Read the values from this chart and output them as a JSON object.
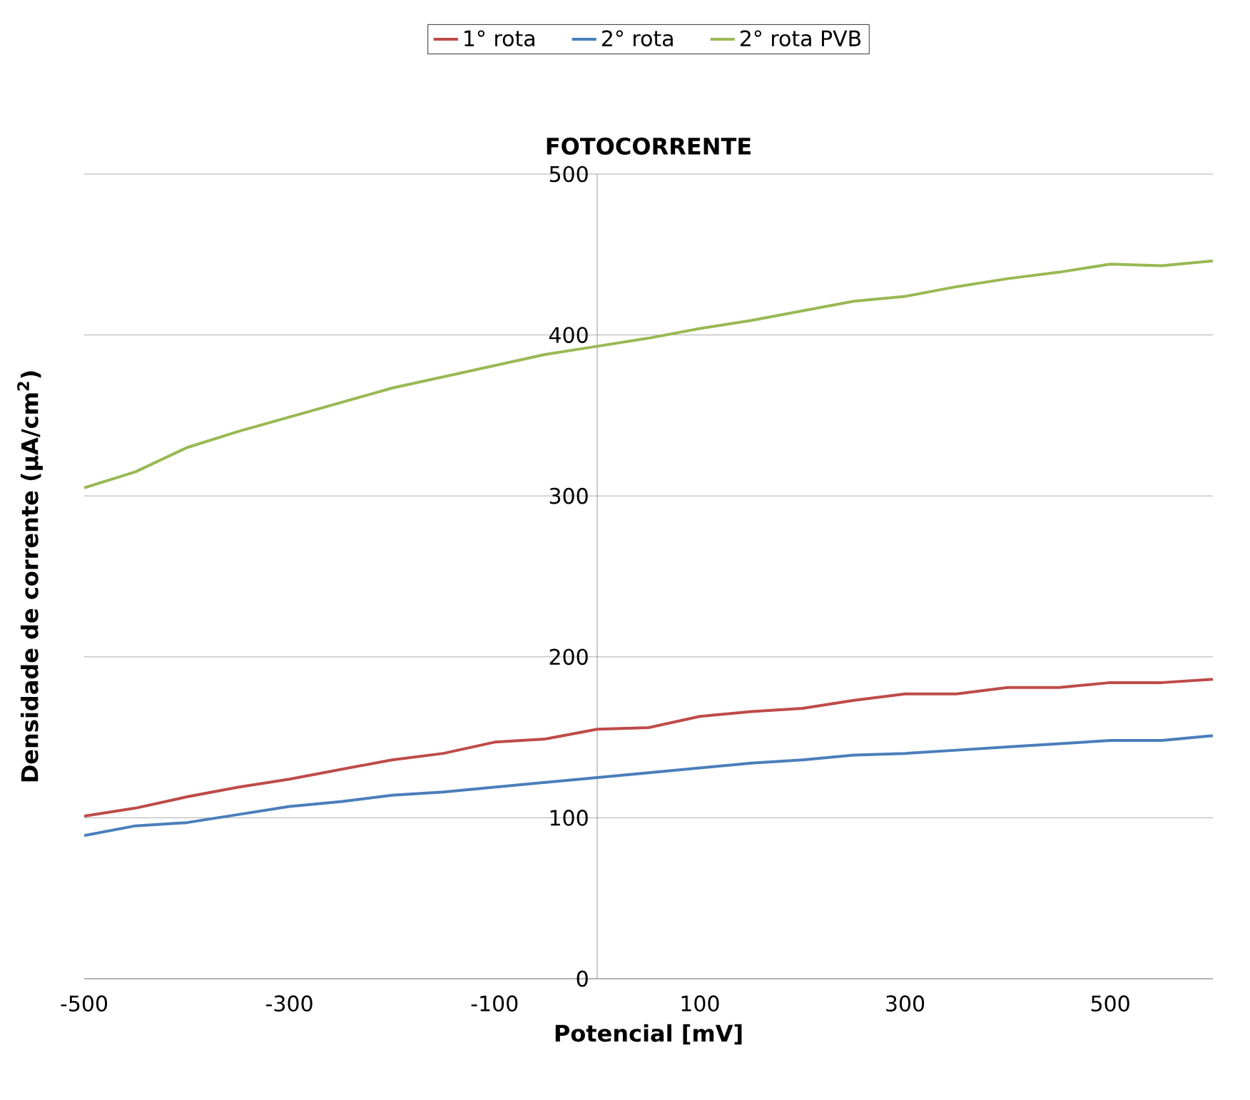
{
  "chart_data": {
    "type": "line",
    "title": "FOTOCORRENTE",
    "xlabel": "Potencial [mV]",
    "ylabel": "Densidade de corrente (µA/cm$^{2}$)",
    "x": [
      -500,
      -450,
      -400,
      -350,
      -300,
      -250,
      -200,
      -150,
      -100,
      -50,
      0,
      50,
      100,
      150,
      200,
      250,
      300,
      350,
      400,
      450,
      500,
      550,
      600
    ],
    "series": [
      {
        "name": "1° rota",
        "color": "#be4b48",
        "values": [
          101,
          106,
          113,
          119,
          124,
          130,
          136,
          140,
          147,
          149,
          155,
          156,
          163,
          166,
          168,
          173,
          177,
          177,
          181,
          181,
          184,
          184,
          186
        ]
      },
      {
        "name": "2° rota",
        "color": "#4a7ebb",
        "values": [
          89,
          95,
          97,
          102,
          107,
          110,
          114,
          116,
          119,
          122,
          125,
          128,
          131,
          134,
          136,
          139,
          140,
          142,
          144,
          146,
          148,
          148,
          151
        ]
      },
      {
        "name": "2° rota PVB",
        "color": "#98b954",
        "values": [
          305,
          315,
          330,
          340,
          349,
          358,
          367,
          374,
          381,
          388,
          393,
          398,
          404,
          409,
          415,
          421,
          424,
          430,
          435,
          439,
          444,
          443,
          446
        ]
      }
    ],
    "xlim": [
      -500,
      600
    ],
    "xticks": [
      -500,
      -300,
      -100,
      100,
      300,
      500
    ],
    "ylim": [
      0,
      500
    ],
    "yticks": [
      0,
      100,
      200,
      300,
      400,
      500
    ],
    "grid": "y",
    "legend": "top",
    "marker": "none",
    "line_style": "solid"
  }
}
